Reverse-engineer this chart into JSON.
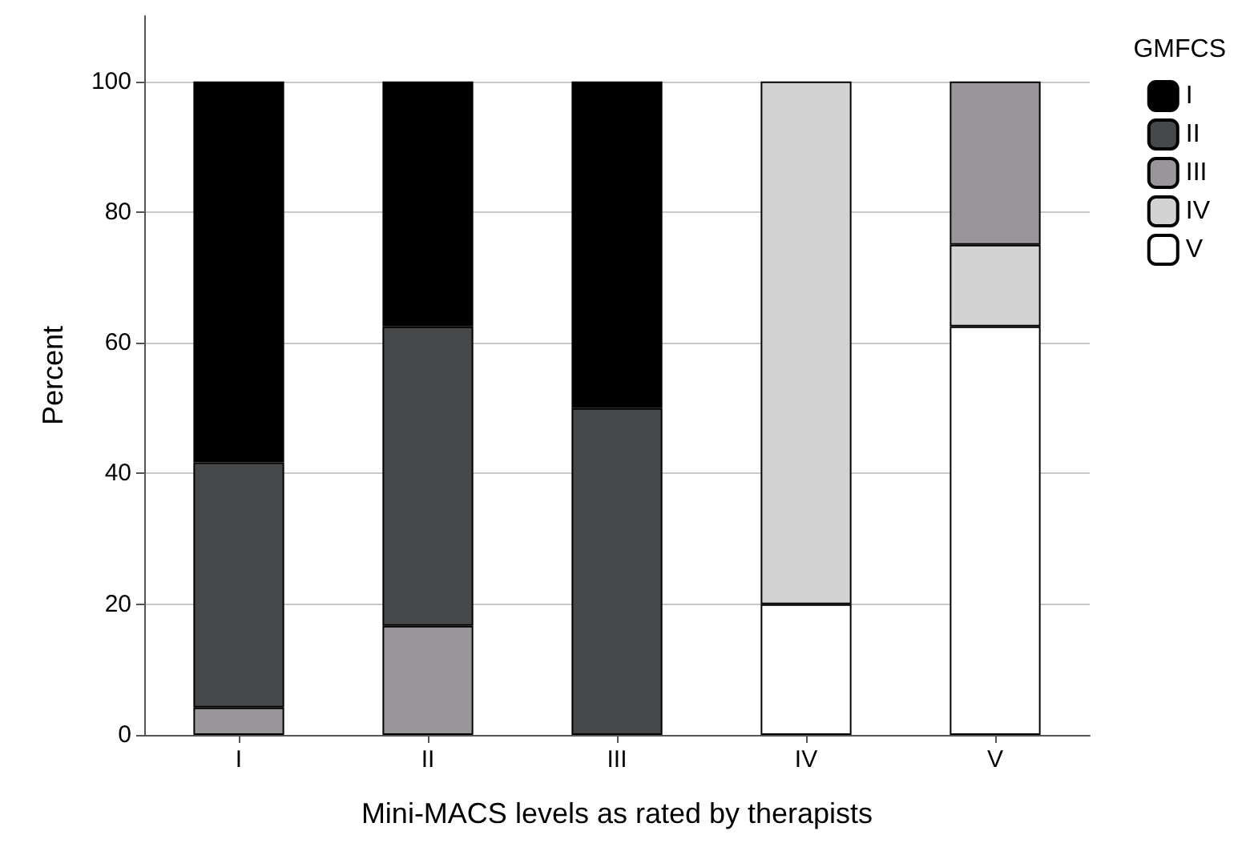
{
  "chart_data": {
    "type": "bar",
    "stacked": true,
    "xlabel": "Mini-MACS levels as rated by therapists",
    "ylabel": "Percent",
    "legend_title": "GMFCS",
    "categories": [
      "I",
      "II",
      "III",
      "IV",
      "V"
    ],
    "series": [
      {
        "name": "V",
        "color": "#ffffff",
        "values": [
          null,
          null,
          null,
          20,
          62.5
        ]
      },
      {
        "name": "IV",
        "color": "#d3d3d3",
        "values": [
          null,
          null,
          null,
          80,
          12.5
        ]
      },
      {
        "name": "III",
        "color": "#99969a",
        "values": [
          4.2,
          16.7,
          null,
          null,
          25
        ]
      },
      {
        "name": "II",
        "color": "#47484a",
        "values": [
          37.5,
          45.8,
          50,
          null,
          null
        ]
      },
      {
        "name": "I",
        "color": "#000000",
        "values": [
          58.3,
          37.5,
          50,
          null,
          null
        ]
      }
    ],
    "ylim": [
      0,
      110
    ],
    "yticks": [
      0,
      20,
      40,
      60,
      80,
      100
    ],
    "grid": "y",
    "legend": "top right"
  }
}
